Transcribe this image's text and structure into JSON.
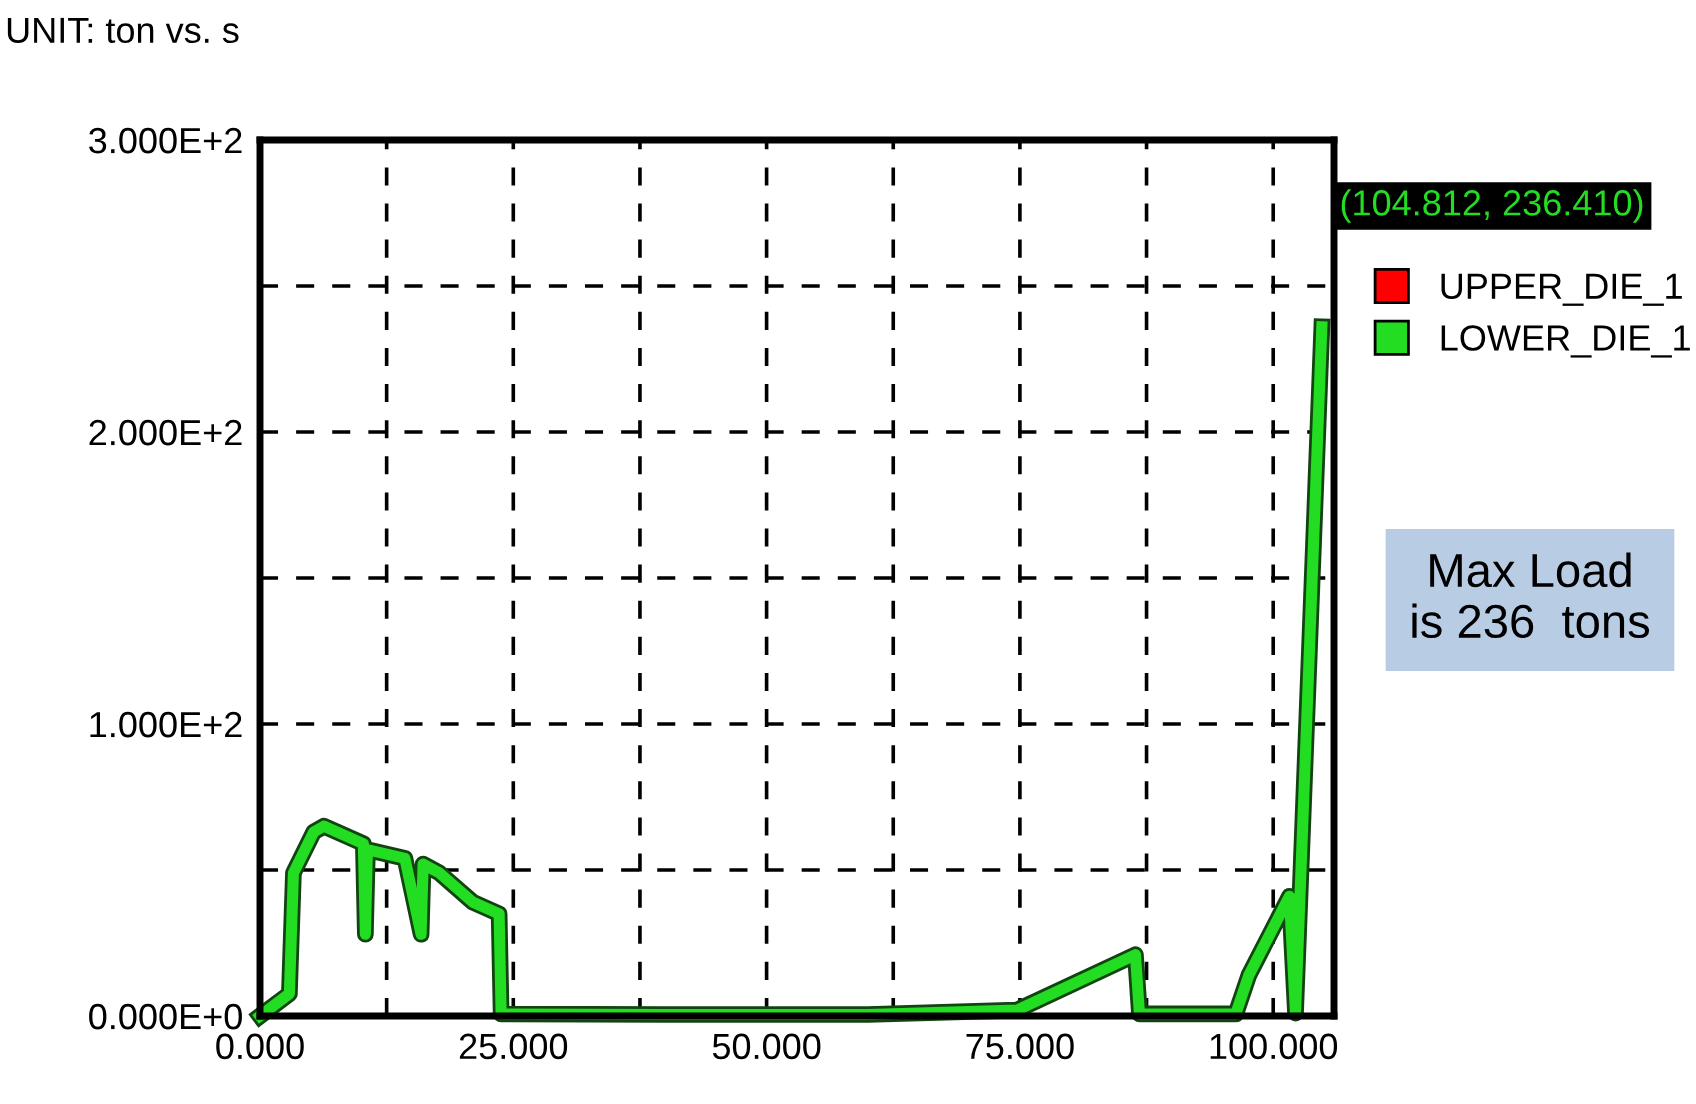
{
  "chart_data": {
    "type": "line",
    "title": "UNIT: ton vs. s",
    "xlim": [
      0,
      106
    ],
    "ylim": [
      0,
      300
    ],
    "xticks": [
      {
        "value": 0,
        "label": "0.000"
      },
      {
        "value": 12.5,
        "label": null
      },
      {
        "value": 25,
        "label": "25.000"
      },
      {
        "value": 37.5,
        "label": null
      },
      {
        "value": 50,
        "label": "50.000"
      },
      {
        "value": 62.5,
        "label": null
      },
      {
        "value": 75,
        "label": "75.000"
      },
      {
        "value": 87.5,
        "label": null
      },
      {
        "value": 100,
        "label": "100.000"
      }
    ],
    "yticks": [
      {
        "value": 0,
        "label": "0.000E+0"
      },
      {
        "value": 50,
        "label": null
      },
      {
        "value": 100,
        "label": "1.000E+2"
      },
      {
        "value": 150,
        "label": null
      },
      {
        "value": 200,
        "label": "2.000E+2"
      },
      {
        "value": 250,
        "label": null
      },
      {
        "value": 300,
        "label": "3.000E+2"
      }
    ],
    "grid": true,
    "legend": "right",
    "line_style": "solid",
    "series": [
      {
        "name": "UPPER_DIE_1",
        "color": "#ff0000"
      },
      {
        "name": "LOWER_DIE_1",
        "color": "#22dd22",
        "x": [
          0,
          2.9,
          3.3,
          5.3,
          6.3,
          10.2,
          10.4,
          10.6,
          14.3,
          15.9,
          16.1,
          17.7,
          21,
          23.6,
          23.8,
          40,
          60,
          74.7,
          86.4,
          86.8,
          96.3,
          97.6,
          101.6,
          102.2,
          104.8
        ],
        "values": [
          0,
          7.6,
          49,
          63,
          65,
          59,
          28,
          57,
          54,
          28,
          52,
          49,
          39,
          35,
          0.7,
          0.5,
          0.5,
          2,
          21,
          0.7,
          0.7,
          14,
          41,
          1,
          236
        ]
      }
    ],
    "annotations": [
      "(104.812, 236.410)",
      "Max Load\nis 236  tons"
    ]
  }
}
